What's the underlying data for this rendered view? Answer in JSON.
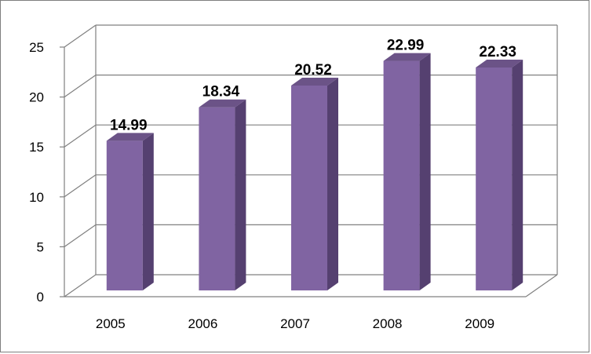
{
  "chart_data": {
    "type": "bar",
    "title": "",
    "xlabel": "",
    "ylabel": "",
    "categories": [
      "2005",
      "2006",
      "2007",
      "2008",
      "2009"
    ],
    "values": [
      14.99,
      18.34,
      20.52,
      22.99,
      22.33
    ],
    "data_labels": [
      "14.99",
      "18.34",
      "20.52",
      "22.99",
      "22.33"
    ],
    "ylim": [
      0,
      25
    ],
    "yticks": [
      0,
      5,
      10,
      15,
      20,
      25
    ],
    "ytick_labels": [
      "0",
      "5",
      "10",
      "15",
      "20",
      "25"
    ],
    "grid": true,
    "legend": "none",
    "style": "3d-column",
    "colors": {
      "bar_front": "#8064a2",
      "bar_side": "#554070",
      "bar_top": "#6b5387",
      "grid": "#808080",
      "axis": "#808080"
    }
  }
}
